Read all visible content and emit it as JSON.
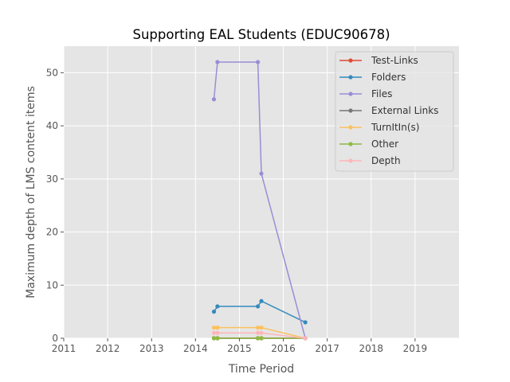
{
  "chart_data": {
    "type": "line",
    "title": "Supporting EAL Students (EDUC90678)",
    "xlabel": "Time Period",
    "ylabel": "Maximum depth of LMS content items",
    "xlim": [
      2011,
      2020
    ],
    "ylim": [
      0,
      55
    ],
    "xticks": [
      2011,
      2012,
      2013,
      2014,
      2015,
      2016,
      2017,
      2018,
      2019
    ],
    "yticks": [
      0,
      10,
      20,
      30,
      40,
      50
    ],
    "grid": true,
    "legend_position": "top-right",
    "series": [
      {
        "name": "Test-Links",
        "color": "#E24A33",
        "points": [
          [
            2014.42,
            0
          ],
          [
            2014.5,
            0
          ],
          [
            2015.42,
            0
          ],
          [
            2015.5,
            0
          ],
          [
            2016.5,
            0
          ]
        ]
      },
      {
        "name": "Folders",
        "color": "#348ABD",
        "points": [
          [
            2014.42,
            5
          ],
          [
            2014.5,
            6
          ],
          [
            2015.42,
            6
          ],
          [
            2015.5,
            7
          ],
          [
            2016.5,
            3
          ]
        ]
      },
      {
        "name": "Files",
        "color": "#988ED5",
        "points": [
          [
            2014.42,
            45
          ],
          [
            2014.5,
            52
          ],
          [
            2015.42,
            52
          ],
          [
            2015.5,
            31
          ],
          [
            2016.5,
            0
          ]
        ]
      },
      {
        "name": "External Links",
        "color": "#777777",
        "points": [
          [
            2014.42,
            0
          ],
          [
            2014.5,
            0
          ],
          [
            2015.42,
            0
          ],
          [
            2015.5,
            0
          ],
          [
            2016.5,
            0
          ]
        ]
      },
      {
        "name": "TurnItIn(s)",
        "color": "#FBC15E",
        "points": [
          [
            2014.42,
            2
          ],
          [
            2014.5,
            2
          ],
          [
            2015.42,
            2
          ],
          [
            2015.5,
            2
          ],
          [
            2016.5,
            0
          ]
        ]
      },
      {
        "name": "Other",
        "color": "#8EBA42",
        "points": [
          [
            2014.42,
            0
          ],
          [
            2014.5,
            0
          ],
          [
            2015.42,
            0
          ],
          [
            2015.5,
            0
          ],
          [
            2016.5,
            0
          ]
        ]
      },
      {
        "name": "Depth",
        "color": "#FFB5B8",
        "points": [
          [
            2014.42,
            1
          ],
          [
            2014.5,
            1
          ],
          [
            2015.42,
            1
          ],
          [
            2015.5,
            1
          ],
          [
            2016.5,
            0
          ]
        ]
      }
    ]
  }
}
